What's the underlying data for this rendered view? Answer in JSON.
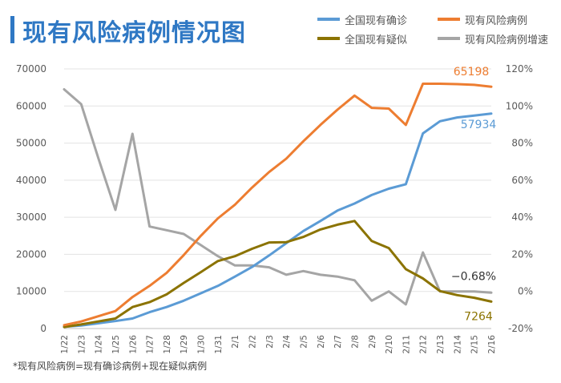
{
  "header": {
    "title": "现有风险病例情况图"
  },
  "footnote": "*现有风险病例=现有确诊病例+现在疑似病例",
  "chart_data": {
    "type": "line",
    "title": "现有风险病例情况图",
    "categories": [
      "1/22",
      "1/23",
      "1/24",
      "1/25",
      "1/26",
      "1/27",
      "1/28",
      "1/29",
      "1/30",
      "1/31",
      "2/1",
      "2/2",
      "2/3",
      "2/4",
      "2/5",
      "2/6",
      "2/7",
      "2/8",
      "2/9",
      "2/10",
      "2/11",
      "2/12",
      "2/13",
      "2/14",
      "2/15",
      "2/16"
    ],
    "y_left": {
      "ticks": [
        "0",
        "10000",
        "20000",
        "30000",
        "40000",
        "50000",
        "60000",
        "70000"
      ],
      "range": [
        0,
        70000
      ]
    },
    "y_right": {
      "ticks": [
        "-20%",
        "0%",
        "20%",
        "40%",
        "60%",
        "80%",
        "100%",
        "120%"
      ],
      "range": [
        -20,
        120
      ]
    },
    "series": [
      {
        "name": "全国现有确诊",
        "color": "#5b9bd5",
        "axis": "left",
        "values": [
          500,
          800,
          1400,
          2000,
          2700,
          4400,
          5800,
          7500,
          9500,
          11500,
          14000,
          16600,
          19700,
          23000,
          26300,
          29000,
          31800,
          33700,
          36000,
          37700,
          38900,
          52600,
          55900,
          56900,
          57400,
          57934
        ]
      },
      {
        "name": "现有风险病例",
        "color": "#ed7d31",
        "axis": "left",
        "values": [
          900,
          1900,
          3300,
          4700,
          8500,
          11500,
          15000,
          19800,
          25000,
          29700,
          33400,
          38000,
          42200,
          45800,
          50500,
          54900,
          59000,
          62800,
          59500,
          59300,
          54900,
          66000,
          66000,
          65900,
          65700,
          65198
        ]
      },
      {
        "name": "全国现有疑似",
        "color": "#8b7300",
        "axis": "left",
        "values": [
          400,
          1100,
          1900,
          2700,
          5800,
          7100,
          9200,
          12300,
          15200,
          18200,
          19500,
          21500,
          23200,
          23300,
          24700,
          26700,
          28000,
          29000,
          23600,
          21700,
          16000,
          13500,
          10100,
          9000,
          8300,
          7264
        ]
      },
      {
        "name": "现有风险病例增速",
        "color": "#a5a5a5",
        "axis": "right",
        "values": [
          109,
          101,
          72,
          44,
          85,
          35,
          33,
          31,
          25,
          19,
          14,
          14,
          13,
          9,
          11,
          9,
          8,
          6,
          -5,
          0,
          -7,
          21,
          0,
          0,
          0,
          -0.68
        ]
      }
    ],
    "data_labels": [
      {
        "series": "现有风险病例",
        "text": "65198",
        "color": "#ed7d31"
      },
      {
        "series": "全国现有确诊",
        "text": "57934",
        "color": "#5b9bd5"
      },
      {
        "series": "现有风险病例增速",
        "text": "−0.68%",
        "color": "#333333"
      },
      {
        "series": "全国现有疑似",
        "text": "7264",
        "color": "#8b7300"
      }
    ]
  }
}
